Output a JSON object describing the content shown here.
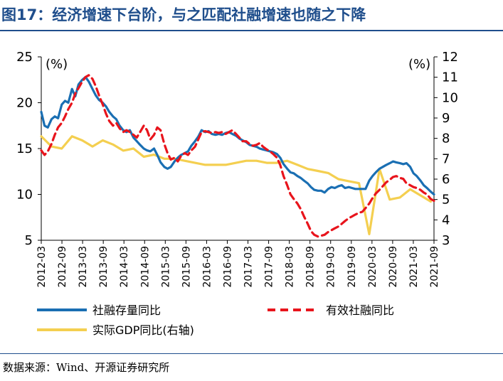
{
  "title": "图17：经济增速下台阶，与之匹配社融增速也随之下降",
  "source": "数据来源：Wind、开源证券研究所",
  "colors": {
    "title": "#1f4e8c",
    "series1": "#1a6fb3",
    "series2": "#e8141c",
    "series3": "#f4cf50"
  },
  "chart_data": {
    "type": "line",
    "y_left": {
      "unit": "(%)",
      "lim": [
        5,
        25
      ],
      "ticks": [
        5,
        10,
        15,
        20,
        25
      ]
    },
    "y_right": {
      "unit": "(%)",
      "lim": [
        3,
        12
      ],
      "ticks": [
        3,
        4,
        5,
        6,
        7,
        8,
        9,
        10,
        11,
        12
      ]
    },
    "x_ticks": [
      "2012-03",
      "2012-09",
      "2013-03",
      "2013-09",
      "2014-03",
      "2014-09",
      "2015-03",
      "2015-09",
      "2016-03",
      "2016-09",
      "2017-03",
      "2017-09",
      "2018-03",
      "2018-09",
      "2019-03",
      "2019-09",
      "2020-03",
      "2020-09",
      "2021-03",
      "2021-09"
    ],
    "x_range": [
      2012.17,
      2021.75
    ],
    "series": [
      {
        "name": "社融存量同比",
        "axis": "left",
        "style": "solid",
        "x": [
          2012.17,
          2012.25,
          2012.33,
          2012.42,
          2012.5,
          2012.58,
          2012.67,
          2012.75,
          2012.83,
          2012.92,
          2013.0,
          2013.08,
          2013.17,
          2013.25,
          2013.33,
          2013.42,
          2013.5,
          2013.58,
          2013.67,
          2013.75,
          2013.83,
          2013.92,
          2014.0,
          2014.08,
          2014.17,
          2014.25,
          2014.33,
          2014.42,
          2014.5,
          2014.58,
          2014.67,
          2014.75,
          2014.83,
          2014.92,
          2015.0,
          2015.08,
          2015.17,
          2015.25,
          2015.33,
          2015.42,
          2015.5,
          2015.58,
          2015.67,
          2015.75,
          2015.83,
          2015.92,
          2016.0,
          2016.08,
          2016.17,
          2016.25,
          2016.33,
          2016.42,
          2016.5,
          2016.58,
          2016.67,
          2016.75,
          2016.83,
          2016.92,
          2017.0,
          2017.08,
          2017.17,
          2017.25,
          2017.33,
          2017.42,
          2017.5,
          2017.58,
          2017.67,
          2017.75,
          2017.83,
          2017.92,
          2018.0,
          2018.08,
          2018.17,
          2018.25,
          2018.33,
          2018.42,
          2018.5,
          2018.58,
          2018.67,
          2018.75,
          2018.83,
          2018.92,
          2019.0,
          2019.08,
          2019.17,
          2019.25,
          2019.33,
          2019.42,
          2019.5,
          2019.58,
          2019.67,
          2019.75,
          2019.83,
          2019.92,
          2020.0,
          2020.08,
          2020.17,
          2020.25,
          2020.33,
          2020.42,
          2020.5,
          2020.58,
          2020.67,
          2020.75,
          2020.83,
          2020.92,
          2021.0,
          2021.08,
          2021.17,
          2021.25,
          2021.33,
          2021.42,
          2021.5,
          2021.58,
          2021.67,
          2021.75
        ],
        "values": [
          19.0,
          17.5,
          17.3,
          18.2,
          18.5,
          18.3,
          19.8,
          20.2,
          20.0,
          21.5,
          20.7,
          22.0,
          22.5,
          22.8,
          22.3,
          21.5,
          20.8,
          20.3,
          20.0,
          19.6,
          19.0,
          18.5,
          18.2,
          17.5,
          17.0,
          16.8,
          17.0,
          16.2,
          15.8,
          15.4,
          15.0,
          14.8,
          14.7,
          15.0,
          14.3,
          13.5,
          13.0,
          12.8,
          13.0,
          13.6,
          14.0,
          14.3,
          14.5,
          14.7,
          15.3,
          15.8,
          16.3,
          17.0,
          16.8,
          16.9,
          16.6,
          16.5,
          16.6,
          16.5,
          16.7,
          16.8,
          16.6,
          16.4,
          16.1,
          15.9,
          15.7,
          15.4,
          15.3,
          15.2,
          15.0,
          14.9,
          14.8,
          14.7,
          14.6,
          14.4,
          14.0,
          13.3,
          12.8,
          12.4,
          12.3,
          12.0,
          11.8,
          11.5,
          11.2,
          10.8,
          10.5,
          10.4,
          10.4,
          10.2,
          10.6,
          10.8,
          10.7,
          10.9,
          11.0,
          10.7,
          10.8,
          10.7,
          10.6,
          10.6,
          10.6,
          10.6,
          11.5,
          12.0,
          12.4,
          12.8,
          13.0,
          13.2,
          13.4,
          13.6,
          13.5,
          13.4,
          13.3,
          13.4,
          13.0,
          12.3,
          12.0,
          11.5,
          11.0,
          10.7,
          10.3,
          10.0
        ]
      },
      {
        "name": "有效社融同比",
        "axis": "left",
        "style": "dashed",
        "x": [
          2012.17,
          2012.25,
          2012.33,
          2012.42,
          2012.5,
          2012.58,
          2012.67,
          2012.75,
          2012.83,
          2012.92,
          2013.0,
          2013.08,
          2013.17,
          2013.25,
          2013.33,
          2013.42,
          2013.5,
          2013.58,
          2013.67,
          2013.75,
          2013.83,
          2013.92,
          2014.0,
          2014.08,
          2014.17,
          2014.25,
          2014.33,
          2014.42,
          2014.5,
          2014.58,
          2014.67,
          2014.75,
          2014.83,
          2014.92,
          2015.0,
          2015.08,
          2015.17,
          2015.25,
          2015.33,
          2015.42,
          2015.5,
          2015.58,
          2015.67,
          2015.75,
          2015.83,
          2015.92,
          2016.0,
          2016.08,
          2016.17,
          2016.25,
          2016.33,
          2016.42,
          2016.5,
          2016.58,
          2016.67,
          2016.75,
          2016.83,
          2016.92,
          2017.0,
          2017.08,
          2017.17,
          2017.25,
          2017.33,
          2017.42,
          2017.5,
          2017.58,
          2017.67,
          2017.75,
          2017.83,
          2017.92,
          2018.0,
          2018.08,
          2018.17,
          2018.25,
          2018.33,
          2018.42,
          2018.5,
          2018.58,
          2018.67,
          2018.75,
          2018.83,
          2018.92,
          2019.0,
          2019.08,
          2019.17,
          2019.25,
          2019.33,
          2019.42,
          2019.5,
          2019.58,
          2019.67,
          2019.75,
          2019.83,
          2019.92,
          2020.0,
          2020.08,
          2020.17,
          2020.25,
          2020.33,
          2020.42,
          2020.5,
          2020.58,
          2020.67,
          2020.75,
          2020.83,
          2020.92,
          2021.0,
          2021.08,
          2021.17,
          2021.25,
          2021.33,
          2021.42,
          2021.5,
          2021.58,
          2021.67,
          2021.75
        ],
        "values": [
          14.8,
          14.3,
          14.7,
          15.5,
          16.5,
          17.3,
          17.8,
          18.5,
          19.3,
          20.0,
          21.0,
          21.6,
          22.3,
          22.8,
          23.0,
          22.6,
          21.8,
          20.8,
          19.8,
          18.8,
          18.0,
          17.5,
          17.8,
          17.2,
          16.8,
          17.0,
          16.8,
          16.5,
          16.2,
          16.8,
          17.5,
          17.0,
          16.0,
          16.5,
          17.3,
          17.0,
          15.5,
          14.5,
          13.8,
          14.0,
          13.6,
          14.2,
          14.5,
          14.3,
          14.8,
          15.2,
          16.0,
          16.8,
          16.9,
          16.8,
          16.7,
          16.8,
          16.7,
          16.8,
          16.6,
          16.8,
          17.0,
          16.6,
          16.2,
          15.8,
          15.8,
          15.5,
          15.3,
          15.4,
          15.6,
          15.2,
          14.9,
          14.7,
          14.4,
          14.0,
          13.2,
          12.0,
          11.0,
          10.0,
          9.5,
          9.0,
          8.4,
          7.6,
          6.8,
          6.0,
          5.6,
          5.4,
          5.5,
          5.6,
          5.9,
          6.1,
          6.3,
          6.5,
          6.8,
          7.1,
          7.4,
          7.6,
          7.8,
          8.0,
          8.1,
          8.5,
          9.0,
          9.6,
          10.1,
          10.5,
          10.9,
          11.3,
          11.6,
          11.9,
          12.0,
          11.8,
          11.7,
          11.2,
          11.0,
          10.8,
          10.7,
          10.5,
          10.2,
          10.0,
          9.5,
          9.3
        ]
      },
      {
        "name": "实际GDP同比(右轴)",
        "axis": "right",
        "style": "solid",
        "x": [
          2012.17,
          2012.42,
          2012.67,
          2012.92,
          2013.17,
          2013.42,
          2013.67,
          2013.92,
          2014.17,
          2014.42,
          2014.67,
          2014.92,
          2015.17,
          2015.42,
          2015.67,
          2015.92,
          2016.17,
          2016.42,
          2016.67,
          2016.92,
          2017.17,
          2017.42,
          2017.67,
          2017.92,
          2018.17,
          2018.42,
          2018.67,
          2018.92,
          2019.17,
          2019.42,
          2019.67,
          2019.92,
          2020.17,
          2020.42,
          2020.67,
          2020.92,
          2021.17,
          2021.42,
          2021.67
        ],
        "values": [
          8.1,
          7.6,
          7.5,
          8.1,
          7.9,
          7.6,
          7.9,
          7.7,
          7.4,
          7.5,
          7.1,
          7.2,
          7.0,
          7.0,
          6.9,
          6.8,
          6.7,
          6.7,
          6.7,
          6.8,
          6.9,
          6.9,
          6.8,
          6.8,
          6.9,
          6.7,
          6.5,
          6.4,
          6.3,
          6.0,
          5.9,
          5.8,
          3.3,
          6.5,
          5.0,
          5.1,
          5.5,
          5.2,
          4.9
        ]
      }
    ]
  },
  "legend": {
    "item1": "社融存量同比",
    "item2": "有效社融同比",
    "item3": "实际GDP同比(右轴)"
  }
}
